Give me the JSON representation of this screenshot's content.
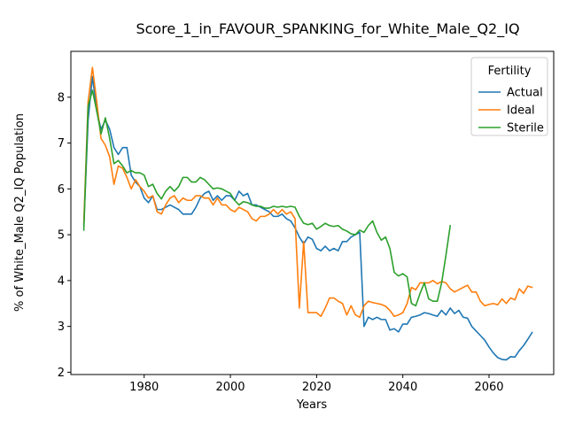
{
  "chart_data": {
    "type": "line",
    "title": "Score_1_in_FAVOUR_SPANKING_for_White_Male_Q2_IQ",
    "xlabel": "Years",
    "ylabel": "% of White_Male Q2_IQ Population",
    "xlim": [
      1963,
      2075
    ],
    "ylim": [
      1.95,
      9.0
    ],
    "xticks": [
      1980,
      2000,
      2020,
      2040,
      2060
    ],
    "yticks": [
      2,
      3,
      4,
      5,
      6,
      7,
      8
    ],
    "grid": false,
    "legend": {
      "title": "Fertility",
      "placement": "top-right"
    },
    "series": [
      {
        "name": "Actual",
        "color": "#1f77b4",
        "points": [
          [
            1966,
            5.2
          ],
          [
            1967,
            7.5
          ],
          [
            1968,
            8.45
          ],
          [
            1969,
            7.7
          ],
          [
            1970,
            7.3
          ],
          [
            1971,
            7.5
          ],
          [
            1972,
            7.3
          ],
          [
            1973,
            6.9
          ],
          [
            1974,
            6.75
          ],
          [
            1975,
            6.9
          ],
          [
            1976,
            6.9
          ],
          [
            1977,
            6.3
          ],
          [
            1978,
            6.15
          ],
          [
            1979,
            6.05
          ],
          [
            1980,
            5.8
          ],
          [
            1981,
            5.7
          ],
          [
            1982,
            5.85
          ],
          [
            1983,
            5.55
          ],
          [
            1984,
            5.55
          ],
          [
            1985,
            5.6
          ],
          [
            1986,
            5.65
          ],
          [
            1987,
            5.6
          ],
          [
            1988,
            5.55
          ],
          [
            1989,
            5.45
          ],
          [
            1990,
            5.45
          ],
          [
            1991,
            5.45
          ],
          [
            1992,
            5.6
          ],
          [
            1993,
            5.8
          ],
          [
            1994,
            5.9
          ],
          [
            1995,
            5.95
          ],
          [
            1996,
            5.75
          ],
          [
            1997,
            5.85
          ],
          [
            1998,
            5.75
          ],
          [
            1999,
            5.85
          ],
          [
            2000,
            5.85
          ],
          [
            2001,
            5.75
          ],
          [
            2002,
            5.95
          ],
          [
            2003,
            5.85
          ],
          [
            2004,
            5.9
          ],
          [
            2005,
            5.65
          ],
          [
            2006,
            5.65
          ],
          [
            2007,
            5.6
          ],
          [
            2008,
            5.55
          ],
          [
            2009,
            5.5
          ],
          [
            2010,
            5.4
          ],
          [
            2011,
            5.4
          ],
          [
            2012,
            5.45
          ],
          [
            2013,
            5.35
          ],
          [
            2014,
            5.3
          ],
          [
            2015,
            5.15
          ],
          [
            2016,
            4.95
          ],
          [
            2017,
            4.8
          ],
          [
            2018,
            4.95
          ],
          [
            2019,
            4.9
          ],
          [
            2020,
            4.7
          ],
          [
            2021,
            4.65
          ],
          [
            2022,
            4.75
          ],
          [
            2023,
            4.65
          ],
          [
            2024,
            4.7
          ],
          [
            2025,
            4.65
          ],
          [
            2026,
            4.85
          ],
          [
            2027,
            4.85
          ],
          [
            2028,
            4.95
          ],
          [
            2029,
            5.0
          ],
          [
            2030,
            5.05
          ],
          [
            2031,
            3.0
          ],
          [
            2032,
            3.2
          ],
          [
            2033,
            3.15
          ],
          [
            2034,
            3.2
          ],
          [
            2035,
            3.15
          ],
          [
            2036,
            3.15
          ],
          [
            2037,
            2.92
          ],
          [
            2038,
            2.95
          ],
          [
            2039,
            2.88
          ],
          [
            2040,
            3.05
          ],
          [
            2041,
            3.05
          ],
          [
            2042,
            3.2
          ],
          [
            2043,
            3.22
          ],
          [
            2044,
            3.25
          ],
          [
            2045,
            3.3
          ],
          [
            2046,
            3.28
          ],
          [
            2047,
            3.25
          ],
          [
            2048,
            3.22
          ],
          [
            2049,
            3.35
          ],
          [
            2050,
            3.25
          ],
          [
            2051,
            3.4
          ],
          [
            2052,
            3.28
          ],
          [
            2053,
            3.35
          ],
          [
            2054,
            3.2
          ],
          [
            2055,
            3.18
          ],
          [
            2056,
            3.0
          ],
          [
            2057,
            2.9
          ],
          [
            2058,
            2.8
          ],
          [
            2059,
            2.7
          ],
          [
            2060,
            2.55
          ],
          [
            2061,
            2.42
          ],
          [
            2062,
            2.32
          ],
          [
            2063,
            2.28
          ],
          [
            2064,
            2.27
          ],
          [
            2065,
            2.34
          ],
          [
            2066,
            2.33
          ],
          [
            2067,
            2.47
          ],
          [
            2068,
            2.58
          ],
          [
            2069,
            2.72
          ],
          [
            2070,
            2.87
          ]
        ]
      },
      {
        "name": "Ideal",
        "color": "#ff7f0e",
        "points": [
          [
            1966,
            5.25
          ],
          [
            1967,
            7.9
          ],
          [
            1968,
            8.65
          ],
          [
            1969,
            7.9
          ],
          [
            1970,
            7.1
          ],
          [
            1971,
            6.95
          ],
          [
            1972,
            6.7
          ],
          [
            1973,
            6.1
          ],
          [
            1974,
            6.5
          ],
          [
            1975,
            6.45
          ],
          [
            1976,
            6.25
          ],
          [
            1977,
            6.0
          ],
          [
            1978,
            6.2
          ],
          [
            1979,
            6.05
          ],
          [
            1980,
            5.95
          ],
          [
            1981,
            5.8
          ],
          [
            1982,
            5.85
          ],
          [
            1983,
            5.5
          ],
          [
            1984,
            5.45
          ],
          [
            1985,
            5.65
          ],
          [
            1986,
            5.8
          ],
          [
            1987,
            5.85
          ],
          [
            1988,
            5.7
          ],
          [
            1989,
            5.8
          ],
          [
            1990,
            5.75
          ],
          [
            1991,
            5.75
          ],
          [
            1992,
            5.85
          ],
          [
            1993,
            5.85
          ],
          [
            1994,
            5.8
          ],
          [
            1995,
            5.8
          ],
          [
            1996,
            5.65
          ],
          [
            1997,
            5.8
          ],
          [
            1998,
            5.65
          ],
          [
            1999,
            5.65
          ],
          [
            2000,
            5.55
          ],
          [
            2001,
            5.5
          ],
          [
            2002,
            5.6
          ],
          [
            2003,
            5.55
          ],
          [
            2004,
            5.5
          ],
          [
            2005,
            5.35
          ],
          [
            2006,
            5.3
          ],
          [
            2007,
            5.4
          ],
          [
            2008,
            5.4
          ],
          [
            2009,
            5.45
          ],
          [
            2010,
            5.55
          ],
          [
            2011,
            5.45
          ],
          [
            2012,
            5.55
          ],
          [
            2013,
            5.45
          ],
          [
            2014,
            5.5
          ],
          [
            2015,
            5.35
          ],
          [
            2016,
            3.4
          ],
          [
            2017,
            4.85
          ],
          [
            2018,
            3.3
          ],
          [
            2019,
            3.3
          ],
          [
            2020,
            3.3
          ],
          [
            2021,
            3.22
          ],
          [
            2022,
            3.4
          ],
          [
            2023,
            3.62
          ],
          [
            2024,
            3.62
          ],
          [
            2025,
            3.55
          ],
          [
            2026,
            3.5
          ],
          [
            2027,
            3.25
          ],
          [
            2028,
            3.45
          ],
          [
            2029,
            3.25
          ],
          [
            2030,
            3.2
          ],
          [
            2031,
            3.45
          ],
          [
            2032,
            3.55
          ],
          [
            2033,
            3.52
          ],
          [
            2034,
            3.5
          ],
          [
            2035,
            3.48
          ],
          [
            2036,
            3.44
          ],
          [
            2037,
            3.35
          ],
          [
            2038,
            3.22
          ],
          [
            2039,
            3.25
          ],
          [
            2040,
            3.3
          ],
          [
            2041,
            3.5
          ],
          [
            2042,
            3.85
          ],
          [
            2043,
            3.8
          ],
          [
            2044,
            3.95
          ],
          [
            2045,
            3.95
          ],
          [
            2046,
            3.95
          ],
          [
            2047,
            4.0
          ],
          [
            2048,
            3.93
          ],
          [
            2049,
            3.98
          ],
          [
            2050,
            3.95
          ],
          [
            2051,
            3.82
          ],
          [
            2052,
            3.75
          ],
          [
            2053,
            3.8
          ],
          [
            2054,
            3.85
          ],
          [
            2055,
            3.9
          ],
          [
            2056,
            3.75
          ],
          [
            2057,
            3.75
          ],
          [
            2058,
            3.55
          ],
          [
            2059,
            3.45
          ],
          [
            2060,
            3.48
          ],
          [
            2061,
            3.5
          ],
          [
            2062,
            3.47
          ],
          [
            2063,
            3.6
          ],
          [
            2064,
            3.5
          ],
          [
            2065,
            3.62
          ],
          [
            2066,
            3.58
          ],
          [
            2067,
            3.82
          ],
          [
            2068,
            3.72
          ],
          [
            2069,
            3.88
          ],
          [
            2070,
            3.85
          ]
        ]
      },
      {
        "name": "Sterile",
        "color": "#2ca02c",
        "points": [
          [
            1966,
            5.1
          ],
          [
            1967,
            7.8
          ],
          [
            1968,
            8.15
          ],
          [
            1969,
            7.7
          ],
          [
            1970,
            7.2
          ],
          [
            1971,
            7.55
          ],
          [
            1972,
            7.1
          ],
          [
            1973,
            6.55
          ],
          [
            1974,
            6.62
          ],
          [
            1975,
            6.5
          ],
          [
            1976,
            6.35
          ],
          [
            1977,
            6.4
          ],
          [
            1978,
            6.35
          ],
          [
            1979,
            6.35
          ],
          [
            1980,
            6.3
          ],
          [
            1981,
            6.05
          ],
          [
            1982,
            6.1
          ],
          [
            1983,
            5.9
          ],
          [
            1984,
            5.78
          ],
          [
            1985,
            5.95
          ],
          [
            1986,
            6.05
          ],
          [
            1987,
            5.95
          ],
          [
            1988,
            6.05
          ],
          [
            1989,
            6.25
          ],
          [
            1990,
            6.25
          ],
          [
            1991,
            6.15
          ],
          [
            1992,
            6.15
          ],
          [
            1993,
            6.25
          ],
          [
            1994,
            6.2
          ],
          [
            1995,
            6.1
          ],
          [
            1996,
            6.0
          ],
          [
            1997,
            6.02
          ],
          [
            1998,
            6.0
          ],
          [
            1999,
            5.95
          ],
          [
            2000,
            5.9
          ],
          [
            2001,
            5.75
          ],
          [
            2002,
            5.65
          ],
          [
            2003,
            5.72
          ],
          [
            2004,
            5.7
          ],
          [
            2005,
            5.65
          ],
          [
            2006,
            5.62
          ],
          [
            2007,
            5.62
          ],
          [
            2008,
            5.58
          ],
          [
            2009,
            5.58
          ],
          [
            2010,
            5.62
          ],
          [
            2011,
            5.6
          ],
          [
            2012,
            5.62
          ],
          [
            2013,
            5.6
          ],
          [
            2014,
            5.62
          ],
          [
            2015,
            5.6
          ],
          [
            2016,
            5.4
          ],
          [
            2017,
            5.25
          ],
          [
            2018,
            5.22
          ],
          [
            2019,
            5.25
          ],
          [
            2020,
            5.12
          ],
          [
            2021,
            5.18
          ],
          [
            2022,
            5.25
          ],
          [
            2023,
            5.2
          ],
          [
            2024,
            5.18
          ],
          [
            2025,
            5.2
          ],
          [
            2026,
            5.12
          ],
          [
            2027,
            5.08
          ],
          [
            2028,
            5.02
          ],
          [
            2029,
            5.0
          ],
          [
            2030,
            5.1
          ],
          [
            2031,
            5.05
          ],
          [
            2032,
            5.2
          ],
          [
            2033,
            5.3
          ],
          [
            2034,
            5.05
          ],
          [
            2035,
            4.88
          ],
          [
            2036,
            4.95
          ],
          [
            2037,
            4.7
          ],
          [
            2038,
            4.18
          ],
          [
            2039,
            4.1
          ],
          [
            2040,
            4.15
          ],
          [
            2041,
            4.08
          ],
          [
            2042,
            3.5
          ],
          [
            2043,
            3.45
          ],
          [
            2044,
            3.72
          ],
          [
            2045,
            3.95
          ],
          [
            2046,
            3.6
          ],
          [
            2047,
            3.55
          ],
          [
            2048,
            3.55
          ],
          [
            2049,
            3.95
          ],
          [
            2050,
            4.55
          ],
          [
            2051,
            5.2
          ]
        ]
      }
    ]
  }
}
